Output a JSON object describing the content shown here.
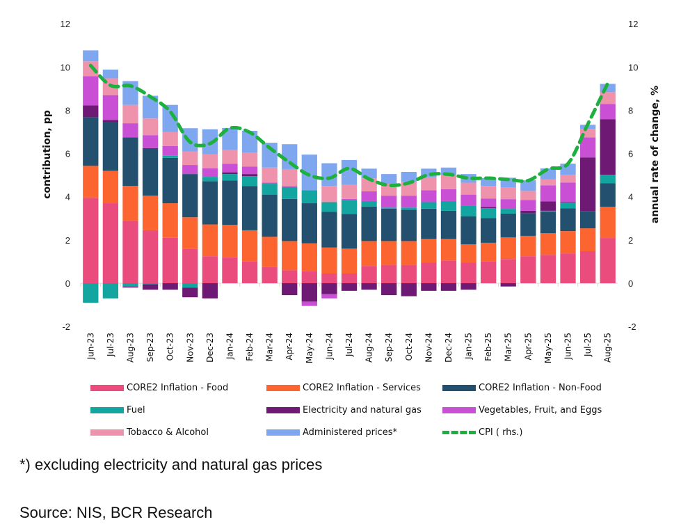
{
  "chart_data": {
    "type": "bar",
    "stacked": true,
    "title": "",
    "xlabel": "",
    "ylabel": "contribution, pp",
    "ylabel_right": "annual rate of change, %",
    "ylim": [
      -2,
      12
    ],
    "ylim_right": [
      -2,
      12
    ],
    "yticks": [
      -2,
      0,
      2,
      4,
      6,
      8,
      10,
      12
    ],
    "legend_position": "bottom",
    "categories": [
      "Jun-23",
      "Jul-23",
      "Aug-23",
      "Sep-23",
      "Oct-23",
      "Nov-23",
      "Dec-23",
      "Jan-24",
      "Feb-24",
      "Mar-24",
      "Apr-24",
      "May-24",
      "Jun-24",
      "Jul-24",
      "Aug-24",
      "Sep-24",
      "Oct-24",
      "Nov-24",
      "Dec-24",
      "Jan-25",
      "Feb-25",
      "Mar-25",
      "Apr-25",
      "May-25",
      "Jun-25",
      "Jul-25",
      "Aug-25"
    ],
    "series": [
      {
        "name": "CORE2 Inflation - Food",
        "color": "#e94c7d",
        "values": [
          3.95,
          3.7,
          2.9,
          2.45,
          2.1,
          1.58,
          1.25,
          1.2,
          1.0,
          0.75,
          0.6,
          0.55,
          0.45,
          0.45,
          0.8,
          0.85,
          0.85,
          0.95,
          1.05,
          0.95,
          1.0,
          1.12,
          1.25,
          1.31,
          1.38,
          1.48,
          2.09
        ]
      },
      {
        "name": "CORE2 Inflation - Services",
        "color": "#fd6530",
        "values": [
          1.48,
          1.5,
          1.6,
          1.6,
          1.6,
          1.47,
          1.47,
          1.5,
          1.45,
          1.4,
          1.35,
          1.3,
          1.2,
          1.15,
          1.15,
          1.1,
          1.1,
          1.1,
          1.0,
          0.85,
          0.87,
          1.0,
          0.94,
          1.0,
          1.03,
          1.06,
          1.45
        ]
      },
      {
        "name": "CORE2 Inflation - Non-Food",
        "color": "#24506f",
        "values": [
          2.25,
          2.25,
          2.25,
          2.2,
          2.1,
          2.0,
          2.0,
          2.05,
          2.05,
          1.95,
          1.95,
          1.85,
          1.65,
          1.6,
          1.6,
          1.5,
          1.45,
          1.4,
          1.3,
          1.3,
          1.15,
          1.1,
          1.05,
          1.0,
          1.06,
          0.8,
          1.09
        ]
      },
      {
        "name": "Fuel",
        "color": "#13a5a0",
        "values": [
          -0.9,
          -0.7,
          -0.15,
          -0.05,
          0.1,
          -0.2,
          0.2,
          0.3,
          0.45,
          0.5,
          0.55,
          0.6,
          0.45,
          0.65,
          0.25,
          0.05,
          0.1,
          0.3,
          0.45,
          0.5,
          0.45,
          0.22,
          0.0,
          0.04,
          0.26,
          0.0,
          0.39
        ]
      },
      {
        "name": "Electricity and natural gas",
        "color": "#6e1a74",
        "values": [
          0.55,
          0.1,
          -0.05,
          -0.25,
          -0.3,
          -0.45,
          -0.7,
          0.08,
          0.1,
          0.0,
          -0.55,
          -0.85,
          -0.5,
          -0.35,
          -0.3,
          -0.55,
          -0.6,
          -0.35,
          -0.35,
          -0.3,
          0.06,
          -0.15,
          0.11,
          0.44,
          0.03,
          2.48,
          2.57
        ]
      },
      {
        "name": "Vegetables, Fruit, and Eggs",
        "color": "#c94fd4",
        "values": [
          1.35,
          1.15,
          0.65,
          0.6,
          0.45,
          0.42,
          0.4,
          0.4,
          0.35,
          0.05,
          0.05,
          -0.2,
          -0.2,
          0.05,
          0.45,
          0.55,
          0.55,
          0.55,
          0.55,
          0.5,
          0.39,
          0.45,
          0.5,
          0.74,
          0.9,
          0.93,
          0.7
        ]
      },
      {
        "name": "Tobacco & Alcohol",
        "color": "#ef93ad",
        "values": [
          0.68,
          0.78,
          0.85,
          0.77,
          0.65,
          0.63,
          0.65,
          0.65,
          0.65,
          0.7,
          0.78,
          0.0,
          0.75,
          0.65,
          0.6,
          0.55,
          0.65,
          0.6,
          0.65,
          0.55,
          0.58,
          0.55,
          0.42,
          0.28,
          0.36,
          0.39,
          0.55
        ]
      },
      {
        "name": "Administered prices*",
        "color": "#7fa7ef",
        "values": [
          0.51,
          0.4,
          1.1,
          1.05,
          1.25,
          1.07,
          1.15,
          1.0,
          1.0,
          1.15,
          1.15,
          1.65,
          1.05,
          1.15,
          0.45,
          0.45,
          0.45,
          0.4,
          0.35,
          0.4,
          0.36,
          0.44,
          0.49,
          0.5,
          0.51,
          0.19,
          0.38
        ]
      }
    ],
    "line_series": {
      "name": "CPI ( rhs.)",
      "color": "#1db03e",
      "axis": "right",
      "style": "dashed",
      "values": [
        10.07,
        9.15,
        9.13,
        8.63,
        7.94,
        6.53,
        6.46,
        7.17,
        6.98,
        6.26,
        5.59,
        5.0,
        4.86,
        5.31,
        4.82,
        4.53,
        4.64,
        5.02,
        5.04,
        4.86,
        4.86,
        4.8,
        4.75,
        5.28,
        5.53,
        7.36,
        9.25
      ]
    }
  },
  "legend": {
    "items": [
      {
        "label": "CORE2 Inflation - Food",
        "color": "#e94c7d",
        "type": "bar"
      },
      {
        "label": "CORE2 Inflation - Services",
        "color": "#fd6530",
        "type": "bar"
      },
      {
        "label": "CORE2 Inflation - Non-Food",
        "color": "#24506f",
        "type": "bar"
      },
      {
        "label": "Fuel",
        "color": "#13a5a0",
        "type": "bar"
      },
      {
        "label": "Electricity and natural gas",
        "color": "#6e1a74",
        "type": "bar"
      },
      {
        "label": "Vegetables, Fruit, and Eggs",
        "color": "#c94fd4",
        "type": "bar"
      },
      {
        "label": "Tobacco & Alcohol",
        "color": "#ef93ad",
        "type": "bar"
      },
      {
        "label": "Administered prices*",
        "color": "#7fa7ef",
        "type": "bar"
      },
      {
        "label": "CPI ( rhs.)",
        "color": "#1db03e",
        "type": "line"
      }
    ]
  },
  "footnotes": {
    "note": "*) excluding electricity and natural gas prices",
    "source": "Source: NIS, BCR Research"
  }
}
